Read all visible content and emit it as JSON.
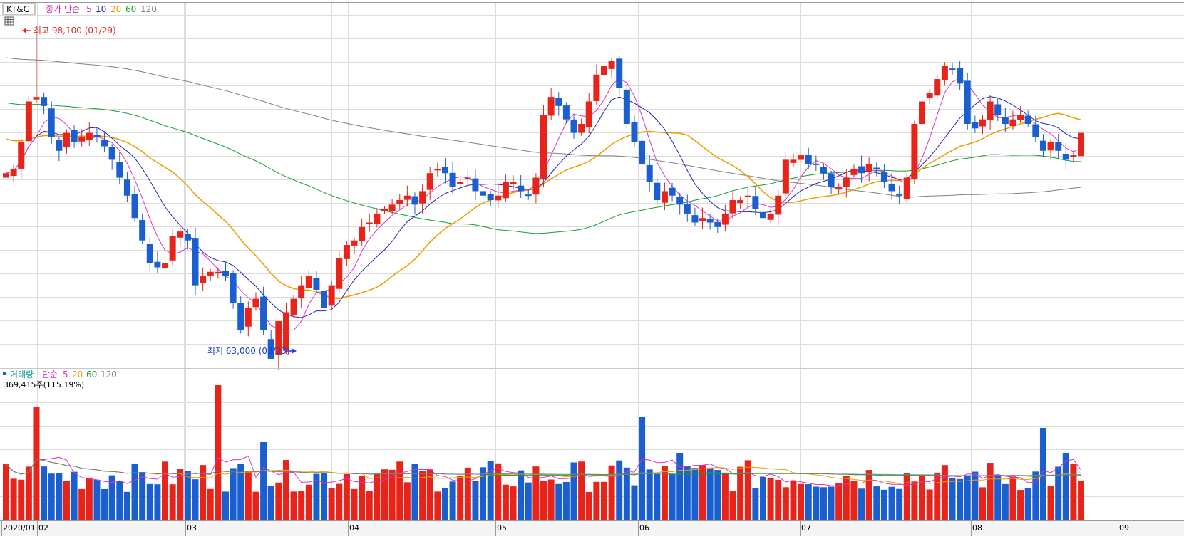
{
  "price_legend": {
    "ticker": "KT&G",
    "label": "종가 단순",
    "periods": [
      "5",
      "10",
      "20",
      "60",
      "120"
    ]
  },
  "volume_legend": {
    "label": "거래량",
    "label2": "단순",
    "periods": [
      "5",
      "20",
      "60",
      "120"
    ],
    "current": "369,415주(115.19%)"
  },
  "annotations": {
    "high": "최고 98,100 (01/29)",
    "low": "최저 63,000 (03/23)"
  },
  "colors": {
    "up": "#e8231a",
    "down": "#1a5fd0",
    "ma5": "#e030c8",
    "ma10": "#2020c0",
    "ma20": "#f0a000",
    "ma60": "#10a030",
    "ma120": "#808080",
    "grid": "#dcdcdc"
  },
  "chart_data": [
    {
      "type": "candlestick",
      "title": "KT&G",
      "x_tick_labels": [
        "2020/01",
        "02",
        "03",
        "04",
        "05",
        "06",
        "07",
        "08",
        "09"
      ],
      "ylim": [
        61000,
        101500
      ],
      "grid": true,
      "legend": "top-left",
      "series": [
        {
          "name": "5",
          "kind": "moving_average"
        },
        {
          "name": "10",
          "kind": "moving_average"
        },
        {
          "name": "20",
          "kind": "moving_average"
        },
        {
          "name": "60",
          "kind": "moving_average"
        },
        {
          "name": "120",
          "kind": "moving_average"
        }
      ],
      "annotations": [
        {
          "label": "최고 98,100 (01/29)",
          "value": 98100
        },
        {
          "label": "최저 63,000 (03/23)",
          "value": 63000
        }
      ]
    },
    {
      "type": "bar",
      "title": "거래량",
      "x_tick_labels": [
        "2020/01",
        "02",
        "03",
        "04",
        "05",
        "06",
        "07",
        "08",
        "09"
      ],
      "grid": true,
      "legend": "top-left",
      "series": [
        {
          "name": "5",
          "kind": "moving_average"
        },
        {
          "name": "20",
          "kind": "moving_average"
        },
        {
          "name": "60",
          "kind": "moving_average"
        },
        {
          "name": "120",
          "kind": "moving_average"
        }
      ],
      "last_value": "369,415주(115.19%)"
    }
  ]
}
